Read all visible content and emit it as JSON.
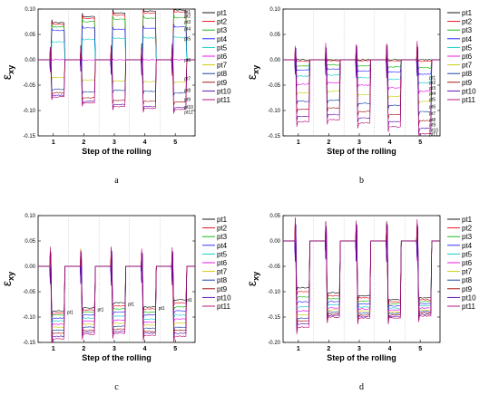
{
  "colors": [
    "#000000",
    "#e8000b",
    "#00b300",
    "#1a1aff",
    "#00c8c8",
    "#e600e6",
    "#c8c800",
    "#003399",
    "#990000",
    "#5500aa",
    "#b3006b"
  ],
  "chart_data": [
    {
      "id": "a",
      "type": "line",
      "caption": "a",
      "ylabel_main": "ε",
      "ylabel_sub": "xy",
      "xlabel": "Step of the rolling",
      "steps": [
        "1",
        "2",
        "3",
        "4",
        "5"
      ],
      "ylim": [
        -0.15,
        0.1
      ],
      "yticks": [
        "0.10",
        "0.05",
        "0.00",
        "-0.05",
        "-0.10",
        "-0.15"
      ],
      "yticks_v": [
        0.1,
        0.05,
        0,
        -0.05,
        -0.1,
        -0.15
      ],
      "legend_position": "right",
      "series": [
        {
          "name": "pt1",
          "values": [
            0.073,
            0.085,
            0.092,
            0.096,
            0.098
          ]
        },
        {
          "name": "pt2",
          "values": [
            0.07,
            0.082,
            0.088,
            0.092,
            0.094
          ]
        },
        {
          "name": "pt3",
          "values": [
            0.065,
            0.075,
            0.08,
            0.082,
            0.083
          ]
        },
        {
          "name": "pt4",
          "values": [
            0.058,
            0.063,
            0.06,
            0.062,
            0.065
          ]
        },
        {
          "name": "pt5",
          "values": [
            0.035,
            0.04,
            0.042,
            0.043,
            0.044
          ]
        },
        {
          "name": "pt6",
          "values": [
            0.0,
            0.0,
            0.0,
            0.0,
            0.0
          ]
        },
        {
          "name": "pt7",
          "values": [
            -0.035,
            -0.04,
            -0.042,
            -0.043,
            -0.044
          ]
        },
        {
          "name": "pt8",
          "values": [
            -0.058,
            -0.063,
            -0.06,
            -0.062,
            -0.065
          ]
        },
        {
          "name": "pt9",
          "values": [
            -0.065,
            -0.075,
            -0.08,
            -0.082,
            -0.083
          ]
        },
        {
          "name": "pt10",
          "values": [
            -0.07,
            -0.082,
            -0.088,
            -0.092,
            -0.094
          ]
        },
        {
          "name": "pt11",
          "values": [
            -0.073,
            -0.085,
            -0.092,
            -0.096,
            -0.098
          ]
        }
      ],
      "annotations": [
        {
          "text": "pt1",
          "x": 5.3,
          "y": 0.095
        },
        {
          "text": "pt2",
          "x": 5.3,
          "y": 0.087
        },
        {
          "text": "pt3",
          "x": 5.3,
          "y": 0.075
        },
        {
          "text": "pt4",
          "x": 5.3,
          "y": 0.062
        },
        {
          "text": "pt5",
          "x": 5.3,
          "y": 0.042
        },
        {
          "text": "pt6",
          "x": 5.3,
          "y": 0.0
        },
        {
          "text": "pt7",
          "x": 5.3,
          "y": -0.037
        },
        {
          "text": "pt8",
          "x": 5.3,
          "y": -0.06
        },
        {
          "text": "pt9",
          "x": 5.3,
          "y": -0.078
        },
        {
          "text": "pt10",
          "x": 5.3,
          "y": -0.093
        },
        {
          "text": "pt11",
          "x": 5.3,
          "y": -0.103
        }
      ]
    },
    {
      "id": "b",
      "type": "line",
      "caption": "b",
      "ylabel_main": "ε",
      "ylabel_sub": "xy",
      "xlabel": "Step of the rolling",
      "steps": [
        "1",
        "2",
        "3",
        "4",
        "5"
      ],
      "ylim": [
        -0.15,
        0.1
      ],
      "yticks": [
        "0.10",
        "0.05",
        "0.00",
        "-0.05",
        "-0.10",
        "-0.15"
      ],
      "yticks_v": [
        0.1,
        0.05,
        0,
        -0.05,
        -0.1,
        -0.15
      ],
      "legend_position": "right",
      "series": [
        {
          "name": "pt1",
          "values": [
            0.0,
            0.0,
            0.0,
            0.0,
            0.0
          ]
        },
        {
          "name": "pt2",
          "values": [
            -0.003,
            -0.002,
            -0.002,
            -0.002,
            -0.003
          ]
        },
        {
          "name": "pt3",
          "values": [
            -0.012,
            -0.01,
            -0.012,
            -0.014,
            -0.016
          ]
        },
        {
          "name": "pt4",
          "values": [
            -0.02,
            -0.018,
            -0.022,
            -0.024,
            -0.028
          ]
        },
        {
          "name": "pt5",
          "values": [
            -0.032,
            -0.03,
            -0.035,
            -0.038,
            -0.045
          ]
        },
        {
          "name": "pt6",
          "values": [
            -0.048,
            -0.045,
            -0.05,
            -0.055,
            -0.062
          ]
        },
        {
          "name": "pt7",
          "values": [
            -0.065,
            -0.062,
            -0.068,
            -0.072,
            -0.082
          ]
        },
        {
          "name": "pt8",
          "values": [
            -0.082,
            -0.08,
            -0.086,
            -0.09,
            -0.102
          ]
        },
        {
          "name": "pt9",
          "values": [
            -0.098,
            -0.095,
            -0.102,
            -0.108,
            -0.12
          ]
        },
        {
          "name": "pt10",
          "values": [
            -0.112,
            -0.108,
            -0.115,
            -0.122,
            -0.135
          ]
        },
        {
          "name": "pt11",
          "values": [
            -0.122,
            -0.118,
            -0.125,
            -0.132,
            -0.146
          ]
        }
      ],
      "annotations": [
        {
          "text": "pt1",
          "x": 5.3,
          "y": -0.035
        },
        {
          "text": "pt2",
          "x": 5.3,
          "y": -0.045
        },
        {
          "text": "pt3",
          "x": 5.3,
          "y": -0.055
        },
        {
          "text": "pt4",
          "x": 5.3,
          "y": -0.066
        },
        {
          "text": "pt5",
          "x": 5.3,
          "y": -0.078
        },
        {
          "text": "pt6",
          "x": 5.3,
          "y": -0.092
        },
        {
          "text": "pt7",
          "x": 5.3,
          "y": -0.105
        },
        {
          "text": "pt8",
          "x": 5.3,
          "y": -0.118
        },
        {
          "text": "pt9",
          "x": 5.3,
          "y": -0.128
        },
        {
          "text": "pt10",
          "x": 5.3,
          "y": -0.138
        },
        {
          "text": "pt11",
          "x": 5.3,
          "y": -0.146
        }
      ]
    },
    {
      "id": "c",
      "type": "line",
      "caption": "c",
      "ylabel_main": "ε",
      "ylabel_sub": "xy",
      "xlabel": "Step of the rolling",
      "steps": [
        "1",
        "2",
        "3",
        "4",
        "5"
      ],
      "ylim": [
        -0.15,
        0.1
      ],
      "yticks": [
        "0.10",
        "0.05",
        "0.00",
        "-0.05",
        "-0.10",
        "-0.15"
      ],
      "yticks_v": [
        0.1,
        0.05,
        0,
        -0.05,
        -0.1,
        -0.15
      ],
      "legend_position": "right",
      "series": [
        {
          "name": "pt1",
          "values": [
            -0.088,
            -0.082,
            -0.072,
            -0.08,
            -0.066
          ]
        },
        {
          "name": "pt2",
          "values": [
            -0.092,
            -0.086,
            -0.078,
            -0.084,
            -0.072
          ]
        },
        {
          "name": "pt3",
          "values": [
            -0.096,
            -0.09,
            -0.084,
            -0.09,
            -0.08
          ]
        },
        {
          "name": "pt4",
          "values": [
            -0.102,
            -0.096,
            -0.09,
            -0.096,
            -0.088
          ]
        },
        {
          "name": "pt5",
          "values": [
            -0.108,
            -0.102,
            -0.098,
            -0.104,
            -0.096
          ]
        },
        {
          "name": "pt6",
          "values": [
            -0.114,
            -0.108,
            -0.106,
            -0.11,
            -0.104
          ]
        },
        {
          "name": "pt7",
          "values": [
            -0.12,
            -0.114,
            -0.112,
            -0.116,
            -0.112
          ]
        },
        {
          "name": "pt8",
          "values": [
            -0.126,
            -0.12,
            -0.118,
            -0.122,
            -0.12
          ]
        },
        {
          "name": "pt9",
          "values": [
            -0.132,
            -0.126,
            -0.124,
            -0.128,
            -0.126
          ]
        },
        {
          "name": "pt10",
          "values": [
            -0.138,
            -0.13,
            -0.128,
            -0.132,
            -0.132
          ]
        },
        {
          "name": "pt11",
          "values": [
            -0.143,
            -0.134,
            -0.132,
            -0.136,
            -0.138
          ]
        }
      ],
      "annotations": [
        {
          "text": "pt1",
          "x": 1.45,
          "y": -0.09
        },
        {
          "text": "pt1",
          "x": 2.45,
          "y": -0.085
        },
        {
          "text": "pt1",
          "x": 3.45,
          "y": -0.074
        },
        {
          "text": "pt1",
          "x": 4.45,
          "y": -0.082
        },
        {
          "text": "pt1",
          "x": 5.35,
          "y": -0.066
        }
      ]
    },
    {
      "id": "d",
      "type": "line",
      "caption": "d",
      "ylabel_main": "ε",
      "ylabel_sub": "xy",
      "xlabel": "Step of the rolling",
      "steps": [
        "1",
        "2",
        "3",
        "4",
        "5"
      ],
      "ylim": [
        -0.2,
        0.05
      ],
      "yticks": [
        "0.05",
        "0.00",
        "-0.05",
        "-0.10",
        "-0.15",
        "-0.20"
      ],
      "yticks_v": [
        0.05,
        0,
        -0.05,
        -0.1,
        -0.15,
        -0.2
      ],
      "legend_position": "right",
      "series": [
        {
          "name": "pt1",
          "values": [
            -0.092,
            -0.102,
            -0.108,
            -0.116,
            -0.112
          ]
        },
        {
          "name": "pt2",
          "values": [
            -0.1,
            -0.108,
            -0.112,
            -0.12,
            -0.116
          ]
        },
        {
          "name": "pt3",
          "values": [
            -0.11,
            -0.114,
            -0.118,
            -0.124,
            -0.12
          ]
        },
        {
          "name": "pt4",
          "values": [
            -0.12,
            -0.12,
            -0.124,
            -0.128,
            -0.124
          ]
        },
        {
          "name": "pt5",
          "values": [
            -0.13,
            -0.126,
            -0.13,
            -0.132,
            -0.128
          ]
        },
        {
          "name": "pt6",
          "values": [
            -0.138,
            -0.132,
            -0.134,
            -0.136,
            -0.132
          ]
        },
        {
          "name": "pt7",
          "values": [
            -0.146,
            -0.136,
            -0.138,
            -0.14,
            -0.136
          ]
        },
        {
          "name": "pt8",
          "values": [
            -0.152,
            -0.14,
            -0.142,
            -0.143,
            -0.139
          ]
        },
        {
          "name": "pt9",
          "values": [
            -0.158,
            -0.144,
            -0.146,
            -0.146,
            -0.142
          ]
        },
        {
          "name": "pt10",
          "values": [
            -0.164,
            -0.147,
            -0.149,
            -0.149,
            -0.145
          ]
        },
        {
          "name": "pt11",
          "values": [
            -0.17,
            -0.15,
            -0.152,
            -0.152,
            -0.148
          ]
        }
      ],
      "annotations": []
    }
  ]
}
